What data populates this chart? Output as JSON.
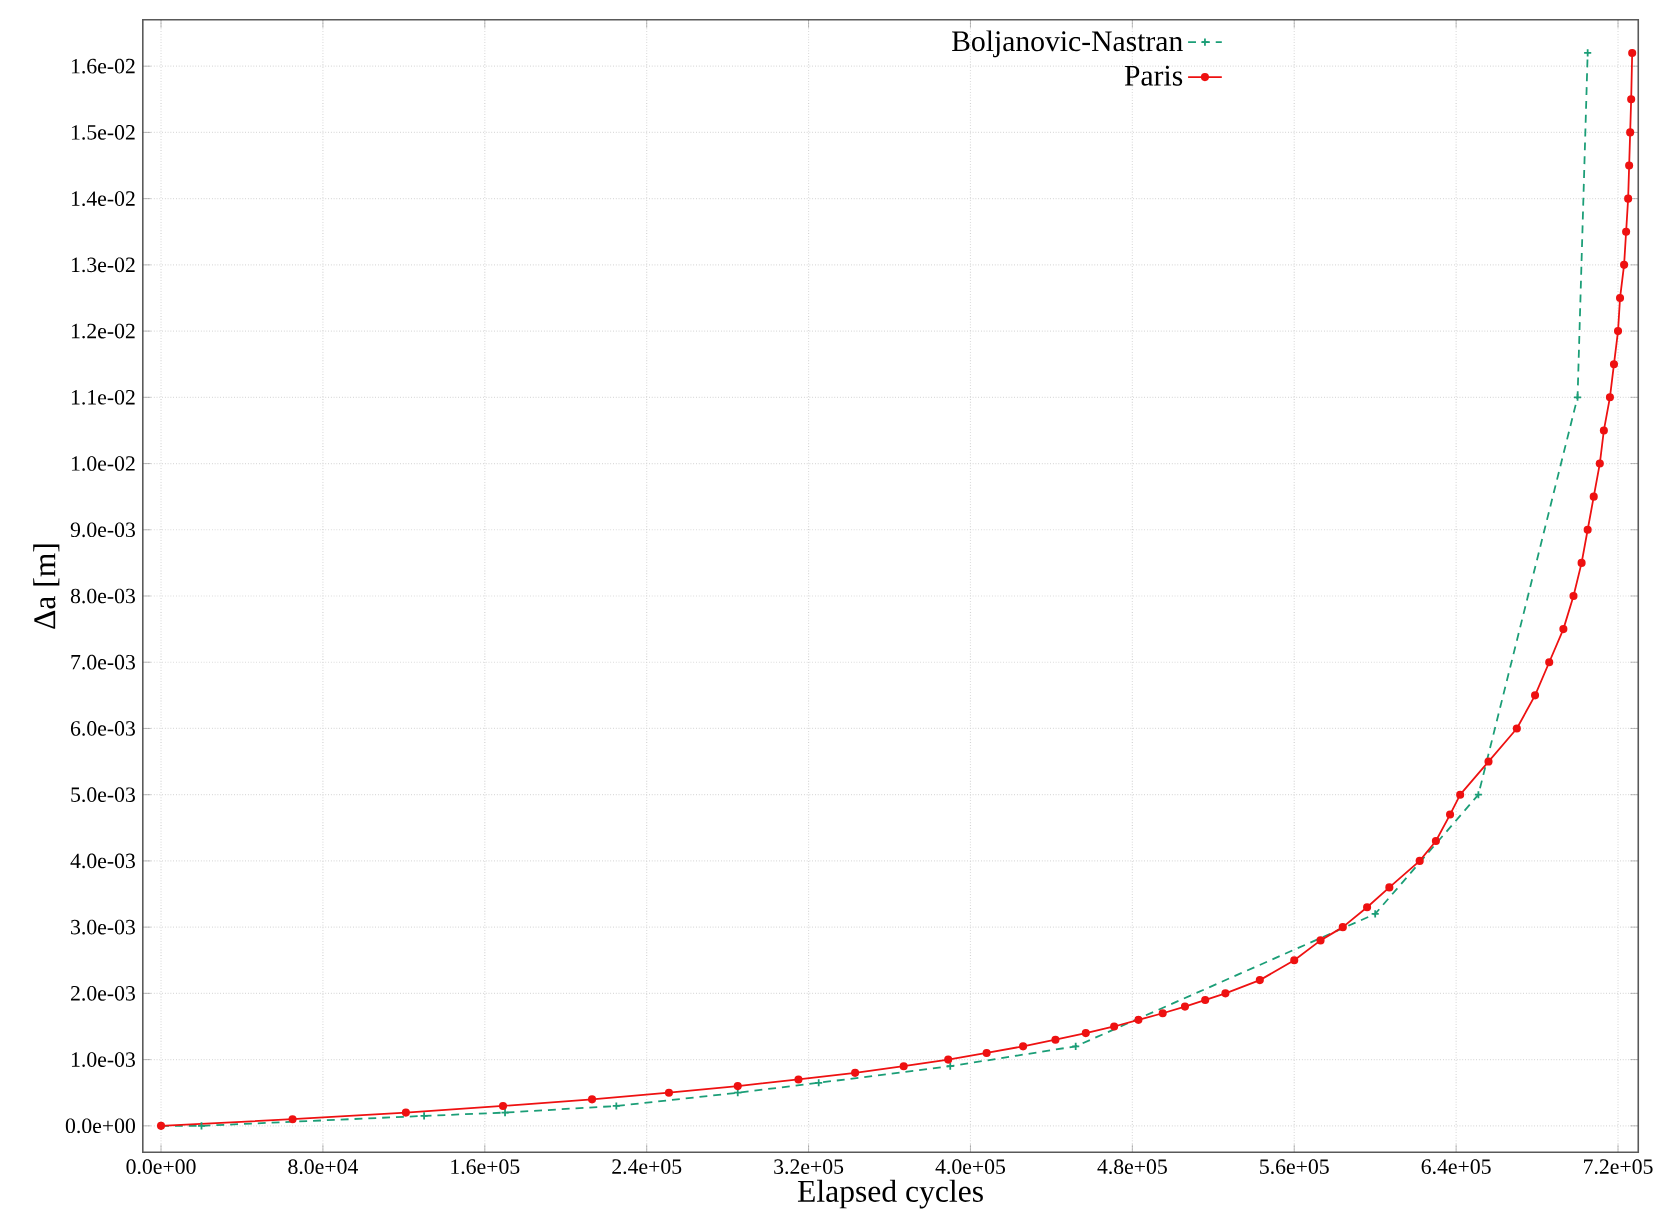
{
  "chart_data": {
    "type": "line",
    "xlabel": "Elapsed cycles",
    "ylabel": "Δa [m]",
    "xlim": [
      -9000,
      730000
    ],
    "ylim": [
      -0.0004,
      0.0167
    ],
    "xticks": [
      {
        "value": 0,
        "label": "0.0e+00"
      },
      {
        "value": 80000,
        "label": "8.0e+04"
      },
      {
        "value": 160000,
        "label": "1.6e+05"
      },
      {
        "value": 240000,
        "label": "2.4e+05"
      },
      {
        "value": 320000,
        "label": "3.2e+05"
      },
      {
        "value": 400000,
        "label": "4.0e+05"
      },
      {
        "value": 480000,
        "label": "4.8e+05"
      },
      {
        "value": 560000,
        "label": "5.6e+05"
      },
      {
        "value": 640000,
        "label": "6.4e+05"
      },
      {
        "value": 720000,
        "label": "7.2e+05"
      }
    ],
    "yticks": [
      {
        "value": 0,
        "label": "0.0e+00"
      },
      {
        "value": 0.001,
        "label": "1.0e-03"
      },
      {
        "value": 0.002,
        "label": "2.0e-03"
      },
      {
        "value": 0.003,
        "label": "3.0e-03"
      },
      {
        "value": 0.004,
        "label": "4.0e-03"
      },
      {
        "value": 0.005,
        "label": "5.0e-03"
      },
      {
        "value": 0.006,
        "label": "6.0e-03"
      },
      {
        "value": 0.007,
        "label": "7.0e-03"
      },
      {
        "value": 0.008,
        "label": "8.0e-03"
      },
      {
        "value": 0.009,
        "label": "9.0e-03"
      },
      {
        "value": 0.01,
        "label": "1.0e-02"
      },
      {
        "value": 0.011,
        "label": "1.1e-02"
      },
      {
        "value": 0.012,
        "label": "1.2e-02"
      },
      {
        "value": 0.013,
        "label": "1.3e-02"
      },
      {
        "value": 0.014,
        "label": "1.4e-02"
      },
      {
        "value": 0.015,
        "label": "1.5e-02"
      },
      {
        "value": 0.016,
        "label": "1.6e-02"
      }
    ],
    "grid": true,
    "legend": "top",
    "series": [
      {
        "name": "Boljanovic-Nastran",
        "color": "#1b9e77",
        "marker": "cross",
        "line_style": "dashed",
        "x": [
          0,
          20000,
          130000,
          170000,
          225000,
          285000,
          325000,
          390000,
          452000,
          600000,
          651000,
          700000,
          705000
        ],
        "values": [
          0,
          0,
          0.00015,
          0.0002,
          0.0003,
          0.0005,
          0.00065,
          0.0009,
          0.0012,
          0.0032,
          0.005,
          0.011,
          0.0162
        ]
      },
      {
        "name": "Paris",
        "color": "#ee1111",
        "marker": "circle",
        "line_style": "solid",
        "x": [
          0,
          65000,
          121000,
          169000,
          213000,
          251000,
          285000,
          315000,
          343000,
          367000,
          389000,
          408000,
          426000,
          442000,
          457000,
          471000,
          483000,
          495000,
          506000,
          516000,
          526000,
          543000,
          560000,
          573000,
          584000,
          596000,
          607000,
          622000,
          630000,
          637000,
          642000,
          656000,
          670000,
          679000,
          686000,
          693000,
          698000,
          702000,
          705000,
          708000,
          711000,
          713000,
          716000,
          718000,
          720000,
          721000,
          723000,
          724000,
          725000,
          725500,
          726000,
          726500,
          727000
        ],
        "values": [
          0,
          0.0001,
          0.0002,
          0.0003,
          0.0004,
          0.0005,
          0.0006,
          0.0007,
          0.0008,
          0.0009,
          0.001,
          0.0011,
          0.0012,
          0.0013,
          0.0014,
          0.0015,
          0.0016,
          0.0017,
          0.0018,
          0.0019,
          0.002,
          0.0022,
          0.0025,
          0.0028,
          0.003,
          0.0033,
          0.0036,
          0.004,
          0.0043,
          0.0047,
          0.005,
          0.0055,
          0.006,
          0.0065,
          0.007,
          0.0075,
          0.008,
          0.0085,
          0.009,
          0.0095,
          0.01,
          0.0105,
          0.011,
          0.0115,
          0.012,
          0.0125,
          0.013,
          0.0135,
          0.014,
          0.0145,
          0.015,
          0.0155,
          0.0162
        ]
      }
    ]
  }
}
